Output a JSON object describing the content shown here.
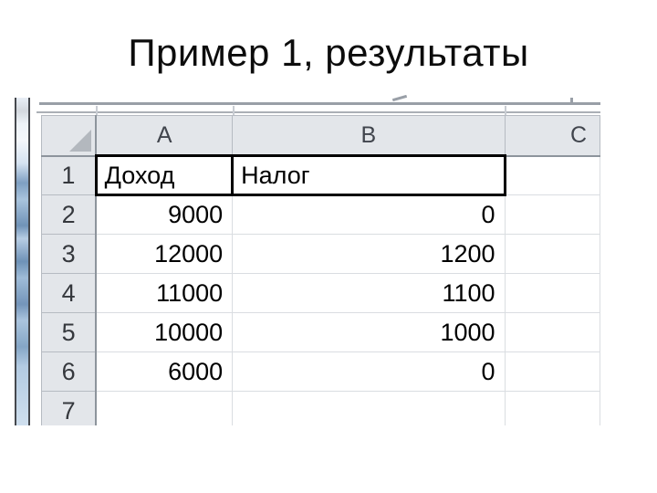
{
  "title": "Пример 1, результаты",
  "spreadsheet": {
    "columns": {
      "a": "A",
      "b": "B",
      "c": "C"
    },
    "rows": [
      {
        "n": "1",
        "a": "Доход",
        "b": "Налог",
        "c": ""
      },
      {
        "n": "2",
        "a": "9000",
        "b": "0",
        "c": ""
      },
      {
        "n": "3",
        "a": "12000",
        "b": "1200",
        "c": ""
      },
      {
        "n": "4",
        "a": "11000",
        "b": "1100",
        "c": ""
      },
      {
        "n": "5",
        "a": "10000",
        "b": "1000",
        "c": ""
      },
      {
        "n": "6",
        "a": "6000",
        "b": "0",
        "c": ""
      },
      {
        "n": "7",
        "a": "",
        "b": "",
        "c": ""
      }
    ],
    "colors": {
      "header_bg": "#e3e6ea",
      "header_grid": "#b6bbc2",
      "header_edge": "#8d949c",
      "cell_grid": "#dadde1",
      "range_border": "#000000",
      "edge_strip_blue": "#9fbcd8"
    }
  }
}
